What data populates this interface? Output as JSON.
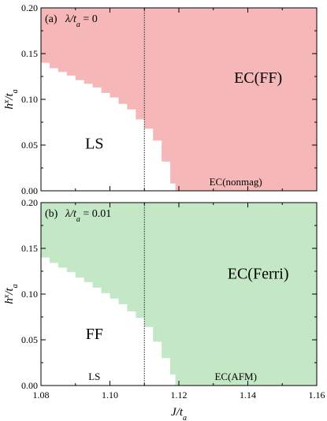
{
  "chart_data": [
    {
      "type": "area",
      "panel_label": "(a)",
      "title": "λ/t_a = 0",
      "ylabel": "h^x/t_a",
      "xlim": [
        1.08,
        1.16
      ],
      "ylim": [
        0.0,
        0.2
      ],
      "yticks": [
        "0.00",
        "0.05",
        "0.10",
        "0.15",
        "0.20"
      ],
      "grid": false,
      "fill_color": "#ee7c7e",
      "fill_opacity": 0.55,
      "vline_x": 1.11,
      "boundary": {
        "x": [
          1.08,
          1.0825,
          1.085,
          1.0875,
          1.09,
          1.0925,
          1.095,
          1.0975,
          1.1,
          1.1025,
          1.105,
          1.1075,
          1.11,
          1.1125,
          1.115,
          1.1175,
          1.119
        ],
        "y": [
          0.14,
          0.134,
          0.13,
          0.126,
          0.121,
          0.117,
          0.113,
          0.107,
          0.102,
          0.095,
          0.089,
          0.078,
          0.068,
          0.055,
          0.032,
          0.008,
          0.0
        ]
      },
      "annotations": [
        {
          "text": "EC(FF)",
          "x": 1.143,
          "y": 0.118
        },
        {
          "text": "LS",
          "x": 1.0955,
          "y": 0.046
        },
        {
          "text": "EC(nonmag)",
          "x": 1.1365,
          "y": 0.006
        }
      ]
    },
    {
      "type": "area",
      "panel_label": "(b)",
      "title": "λ/t_a = 0.01",
      "xlabel": "J/t_a",
      "ylabel": "h^x/t_a",
      "xlim": [
        1.08,
        1.16
      ],
      "ylim": [
        0.0,
        0.2
      ],
      "xticks": [
        "1.08",
        "1.10",
        "1.12",
        "1.14",
        "1.16"
      ],
      "yticks": [
        "0.00",
        "0.05",
        "0.10",
        "0.15",
        "0.20"
      ],
      "grid": false,
      "fill_color": "#93d495",
      "fill_opacity": 0.55,
      "vline_x": 1.11,
      "boundary": {
        "x": [
          1.08,
          1.0825,
          1.085,
          1.0875,
          1.09,
          1.0925,
          1.095,
          1.0975,
          1.1,
          1.1025,
          1.105,
          1.1075,
          1.11,
          1.1125,
          1.115,
          1.1175,
          1.119
        ],
        "y": [
          0.14,
          0.134,
          0.129,
          0.124,
          0.118,
          0.113,
          0.107,
          0.101,
          0.095,
          0.089,
          0.081,
          0.074,
          0.064,
          0.048,
          0.03,
          0.012,
          0.0
        ]
      },
      "annotations": [
        {
          "text": "EC(Ferri)",
          "x": 1.143,
          "y": 0.117
        },
        {
          "text": "FF",
          "x": 1.0955,
          "y": 0.051
        },
        {
          "text": "LS",
          "x": 1.0955,
          "y": 0.006
        },
        {
          "text": "EC(AFM)",
          "x": 1.1365,
          "y": 0.006
        }
      ]
    }
  ]
}
